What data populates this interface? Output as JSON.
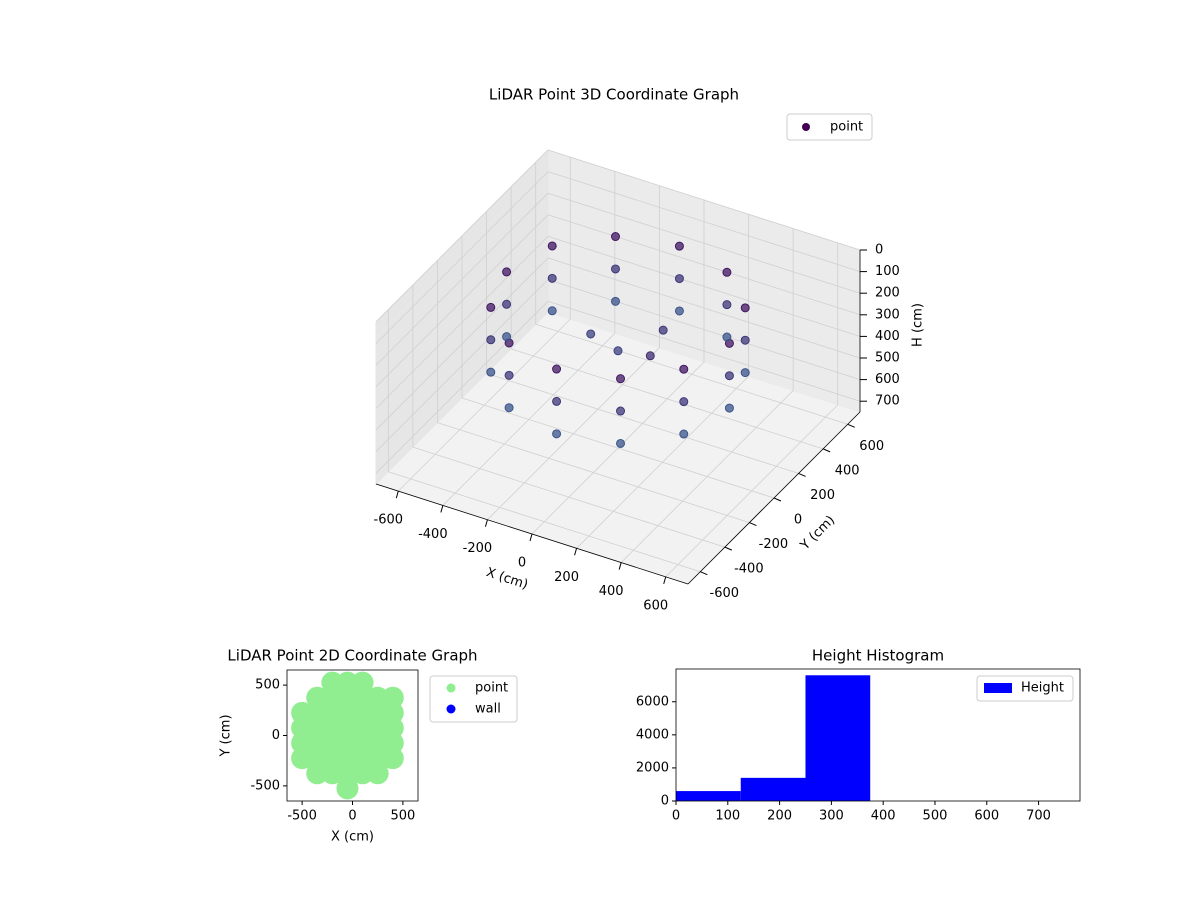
{
  "chart_data": [
    {
      "type": "scatter3d",
      "title": "LiDAR Point 3D Coordinate Graph",
      "xlabel": "X (cm)",
      "ylabel": "Y (cm)",
      "zlabel": "H (cm)",
      "xlim": [
        -700,
        700
      ],
      "ylim": [
        -700,
        700
      ],
      "zlim": [
        0,
        750
      ],
      "z_inverted": true,
      "xticks": [
        -600,
        -400,
        -200,
        0,
        200,
        400,
        600
      ],
      "yticks": [
        -600,
        -400,
        -200,
        0,
        200,
        400,
        600
      ],
      "zticks": [
        0,
        100,
        200,
        300,
        400,
        500,
        600,
        700
      ],
      "grid": true,
      "series": [
        {
          "name": "point",
          "color_map": [
            "#440154",
            "#3b528b",
            "#2c728e"
          ],
          "x": [
            500,
            433,
            250,
            0,
            -250,
            -433,
            -500,
            -433,
            -250,
            0,
            250,
            433,
            500,
            433,
            250,
            0,
            -250,
            -433,
            -500,
            -433,
            -250,
            0,
            250,
            433,
            500,
            433,
            250,
            0,
            -250,
            -433,
            -500,
            -433,
            -250,
            0,
            250,
            433,
            0,
            120,
            -150,
            200
          ],
          "y": [
            0,
            250,
            433,
            500,
            433,
            250,
            0,
            -250,
            -433,
            -500,
            -433,
            -250,
            0,
            250,
            433,
            500,
            433,
            250,
            0,
            -250,
            -433,
            -500,
            -433,
            -250,
            0,
            250,
            433,
            500,
            433,
            250,
            0,
            -250,
            -433,
            -500,
            -433,
            -250,
            0,
            150,
            50,
            -100
          ],
          "z": [
            100,
            100,
            100,
            100,
            100,
            100,
            100,
            100,
            100,
            100,
            100,
            100,
            250,
            250,
            250,
            250,
            250,
            250,
            250,
            250,
            250,
            250,
            250,
            250,
            400,
            400,
            400,
            400,
            400,
            400,
            400,
            400,
            400,
            400,
            400,
            400,
            300,
            250,
            300,
            200
          ]
        }
      ]
    },
    {
      "type": "scatter",
      "title": "LiDAR Point 2D Coordinate Graph",
      "xlabel": "X (cm)",
      "ylabel": "Y (cm)",
      "xlim": [
        -650,
        650
      ],
      "ylim": [
        -650,
        650
      ],
      "xticks": [
        -500,
        0,
        500
      ],
      "yticks": [
        -500,
        0,
        500
      ],
      "series": [
        {
          "name": "point",
          "color": "#90ee90",
          "x": [
            -500,
            -500,
            -500,
            -500,
            -350,
            -350,
            -350,
            -350,
            -350,
            -350,
            -200,
            -200,
            -200,
            -200,
            -200,
            -200,
            -200,
            -50,
            -50,
            -50,
            -50,
            -50,
            -50,
            -50,
            -50,
            100,
            100,
            100,
            100,
            100,
            100,
            100,
            250,
            250,
            250,
            250,
            250,
            250,
            400,
            400,
            400,
            400,
            400
          ],
          "y": [
            -225,
            -75,
            75,
            225,
            -375,
            -225,
            -75,
            75,
            225,
            375,
            -375,
            -225,
            -75,
            75,
            225,
            375,
            525,
            -525,
            -375,
            -225,
            -75,
            75,
            225,
            375,
            525,
            -375,
            -225,
            -75,
            75,
            225,
            375,
            525,
            -375,
            -225,
            -75,
            75,
            225,
            375,
            -225,
            -75,
            75,
            225,
            375
          ]
        },
        {
          "name": "wall",
          "color": "#0000ff",
          "x": [],
          "y": []
        }
      ]
    },
    {
      "type": "histogram",
      "title": "Height Histogram",
      "bins": [
        0,
        125,
        250,
        375,
        500,
        625,
        750
      ],
      "xlim": [
        0,
        780
      ],
      "ylim": [
        0,
        7980
      ],
      "xticks": [
        0,
        100,
        200,
        300,
        400,
        500,
        600,
        700
      ],
      "yticks": [
        0,
        2000,
        4000,
        6000
      ],
      "series": [
        {
          "name": "Height",
          "color": "#0000ff",
          "values": [
            600,
            1400,
            7600,
            0,
            0,
            0
          ]
        }
      ]
    }
  ]
}
